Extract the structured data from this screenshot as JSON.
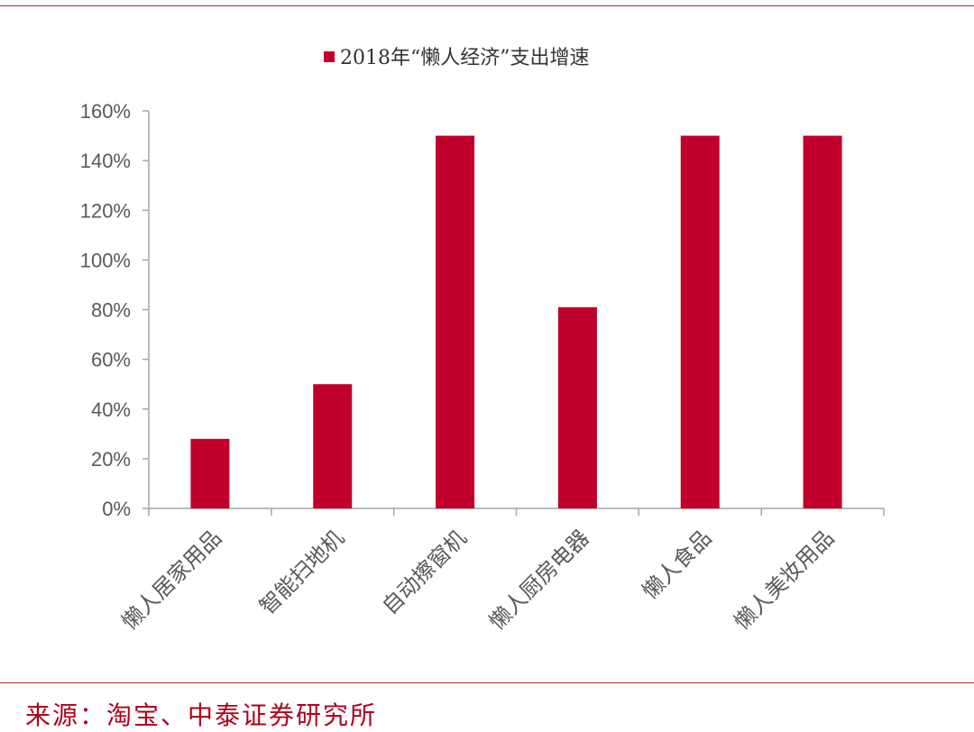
{
  "colors": {
    "bar": "#c0002a",
    "axis": "#a6a6a6",
    "text": "#595959",
    "rule": "#b0272c",
    "source": "#b0001e"
  },
  "source_note": "来源：淘宝、中泰证券研究所",
  "chart_data": {
    "type": "bar",
    "legend": {
      "position": "top",
      "label": "2018年“懒人经济”支出增速"
    },
    "categories": [
      "懒人居家用品",
      "智能扫地机",
      "自动擦窗机",
      "懒人厨房电器",
      "懒人食品",
      "懒人美妆用品"
    ],
    "series": [
      {
        "name": "2018年“懒人经济”支出增速",
        "values": [
          28,
          50,
          150,
          81,
          150,
          150
        ]
      }
    ],
    "ylim": [
      0,
      160
    ],
    "yticks": [
      "0%",
      "20%",
      "40%",
      "60%",
      "80%",
      "100%",
      "120%",
      "140%",
      "160%"
    ],
    "grid": false
  }
}
